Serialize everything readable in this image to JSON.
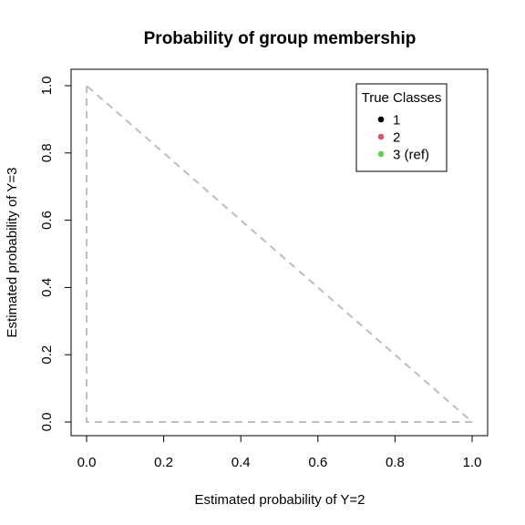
{
  "chart_data": {
    "type": "scatter",
    "title": "Probability of group membership",
    "xlabel": "Estimated probability of Y=2",
    "ylabel": "Estimated probability of Y=3",
    "xlim": [
      0,
      1
    ],
    "ylim": [
      0,
      1
    ],
    "x_ticks": [
      "0.0",
      "0.2",
      "0.4",
      "0.6",
      "0.8",
      "1.0"
    ],
    "y_ticks": [
      "0.0",
      "0.2",
      "0.4",
      "0.6",
      "0.8",
      "1.0"
    ],
    "simplex_boundary": {
      "x": [
        0,
        0,
        1,
        0
      ],
      "y": [
        1,
        0,
        0,
        1
      ],
      "color": "#BEBEBE",
      "style": "dashed"
    },
    "series": [],
    "legend": {
      "title": "True Classes",
      "position": "top-right",
      "items": [
        {
          "label": "1",
          "color": "#000000"
        },
        {
          "label": "2",
          "color": "#DF536B"
        },
        {
          "label": "3 (ref)",
          "color": "#61D04F"
        }
      ]
    },
    "grid": false
  }
}
